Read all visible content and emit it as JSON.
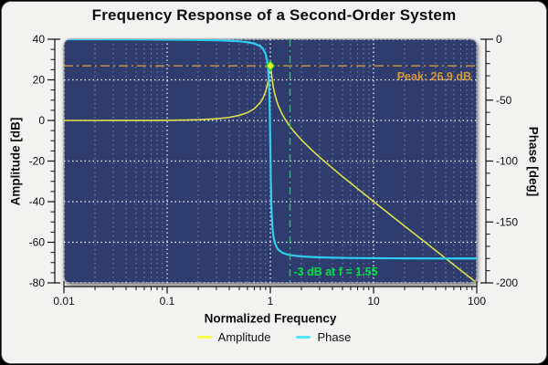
{
  "chart_data": {
    "type": "line",
    "title": "Frequency Response of a Second-Order System",
    "xlabel": "Normalized Frequency",
    "x_scale": "log",
    "xlim": [
      0.01,
      100
    ],
    "x_major_ticks": [
      0.01,
      0.1,
      1,
      10,
      100
    ],
    "x_tick_labels": [
      "0.01",
      "0.1",
      "1",
      "10",
      "100"
    ],
    "plot_bg": "#2d3e6e",
    "grid": {
      "style": "dotted",
      "major_color": "#ffffff",
      "minor_color": "#8e98b4",
      "horizontal_minors": false
    },
    "axes": {
      "left": {
        "label": "Amplitude [dB]",
        "lim": [
          -80,
          40
        ],
        "major_ticks": [
          40,
          20,
          0,
          -20,
          -40,
          -60,
          -80
        ],
        "minor_step": 5
      },
      "right": {
        "label": "Phase [deg]",
        "lim": [
          -200,
          0
        ],
        "major_ticks": [
          0,
          -50,
          -100,
          -150,
          -200
        ],
        "minor_step": 10
      }
    },
    "series": [
      {
        "name": "Amplitude",
        "axis": "left",
        "color": "#dfdf48",
        "width": 1.6,
        "x": [
          0.01,
          0.015,
          0.02,
          0.03,
          0.05,
          0.07,
          0.1,
          0.15,
          0.2,
          0.3,
          0.4,
          0.5,
          0.6,
          0.7,
          0.8,
          0.85,
          0.9,
          0.93,
          0.95,
          0.97,
          0.98,
          0.99,
          1.0,
          1.01,
          1.02,
          1.03,
          1.05,
          1.07,
          1.1,
          1.15,
          1.2,
          1.3,
          1.4,
          1.55,
          1.7,
          2,
          2.5,
          3,
          4,
          5,
          7,
          10,
          15,
          20,
          30,
          50,
          70,
          100
        ],
        "y": [
          0.0,
          0.0,
          0.0,
          0.01,
          0.02,
          0.04,
          0.09,
          0.2,
          0.35,
          0.82,
          1.51,
          2.5,
          3.87,
          5.83,
          8.83,
          11.05,
          14.23,
          16.99,
          19.45,
          22.66,
          24.52,
          26.2,
          26.9,
          26.04,
          24.25,
          22.31,
          18.94,
          16.32,
          13.32,
          9.72,
          7.07,
          3.19,
          0.34,
          -2.95,
          -5.54,
          -9.55,
          -14.41,
          -18.06,
          -23.52,
          -27.63,
          -33.62,
          -39.91,
          -47.01,
          -52.02,
          -59.07,
          -67.96,
          -73.8,
          -80.0
        ]
      },
      {
        "name": "Phase",
        "axis": "right",
        "color": "#31cdee",
        "width": 2.2,
        "x": [
          0.01,
          0.015,
          0.02,
          0.03,
          0.05,
          0.07,
          0.1,
          0.15,
          0.2,
          0.3,
          0.4,
          0.5,
          0.6,
          0.7,
          0.8,
          0.85,
          0.9,
          0.93,
          0.95,
          0.97,
          0.98,
          0.99,
          1.0,
          1.01,
          1.02,
          1.03,
          1.05,
          1.07,
          1.1,
          1.15,
          1.2,
          1.3,
          1.4,
          1.55,
          1.7,
          2,
          2.5,
          3,
          4,
          5,
          7,
          10,
          15,
          20,
          30,
          50,
          70,
          100
        ],
        "y": [
          -0.03,
          -0.04,
          -0.05,
          -0.08,
          -0.13,
          -0.18,
          -0.26,
          -0.4,
          -0.54,
          -0.85,
          -1.23,
          -1.73,
          -2.43,
          -3.55,
          -5.74,
          -7.88,
          -12.09,
          -17.27,
          -23.77,
          -36.57,
          -48.24,
          -66.03,
          -90.0,
          -113.76,
          -131.19,
          -142.6,
          -155.16,
          -161.54,
          -166.68,
          -170.85,
          -172.97,
          -175.13,
          -176.23,
          -177.15,
          -177.67,
          -178.27,
          -178.77,
          -179.03,
          -179.31,
          -179.48,
          -179.62,
          -179.74,
          -179.83,
          -179.87,
          -179.91,
          -179.95,
          -179.96,
          -179.97
        ]
      }
    ],
    "annotations": {
      "peak_line": {
        "label": "Peak: 26.9 dB",
        "y": 26.9,
        "axis": "left",
        "color": "#dfa03c",
        "text_color": "#d4983a",
        "style": "dash-dot"
      },
      "cutoff_line": {
        "label": "-3 dB at f = 1.55",
        "x": 1.55,
        "color": "#00d844",
        "text_color": "#00e046",
        "style": "dash-dot"
      },
      "peak_marker": {
        "x": 1.0,
        "y": 26.9,
        "shape": "diamond",
        "fill": "#e8f51f",
        "stroke": "#1fc93f"
      }
    },
    "legend": [
      {
        "label": "Amplitude",
        "color": "#fdfd4a"
      },
      {
        "label": "Phase",
        "color": "#52e8f8"
      }
    ],
    "legend_position": "bottom"
  }
}
